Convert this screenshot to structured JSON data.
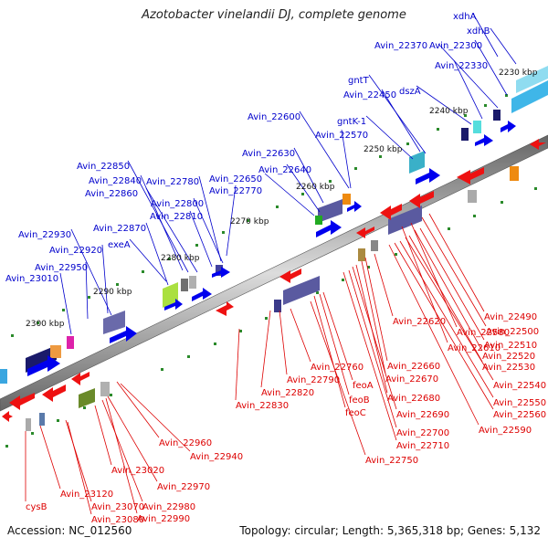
{
  "title": "Azotobacter vinelandii DJ, complete genome",
  "accession": "Accession: NC_012560",
  "topology": "Topology: circular; Length: 5,365,318 bp; Genes: 5,132",
  "colors": {
    "top_strand_label": "#0000cc",
    "bottom_strand_label": "#dd0000",
    "forward_arrow": "#0000ee",
    "reverse_arrow": "#ee1111",
    "tick": "#2a8a2a",
    "axis": "#888888"
  },
  "scale_labels": [
    "2230 kbp",
    "2240 kbp",
    "2250 kbp",
    "2260 kbp",
    "2270 kbp",
    "2280 kbp",
    "2290 kbp",
    "2300 kbp"
  ],
  "top_labels": [
    "xdhA",
    "xdhB",
    "Avin_22370",
    "Avin_22300",
    "Avin_22330",
    "gntT",
    "dszA",
    "Avin_22450",
    "gntK-1",
    "Avin_22600",
    "Avin_22570",
    "Avin_22630",
    "Avin_22640",
    "Avin_22650",
    "Avin_22850",
    "Avin_22780",
    "Avin_22840",
    "Avin_22770",
    "Avin_22860",
    "Avin_22800",
    "Avin_22810",
    "Avin_22870",
    "exeA",
    "Avin_22930",
    "Avin_22920",
    "Avin_22950",
    "Avin_23010"
  ],
  "bottom_labels": [
    "Avin_22490",
    "Avin_22500",
    "Avin_22620",
    "Avin_22580",
    "Avin_22510",
    "Avin_22610",
    "Avin_22520",
    "Avin_22530",
    "Avin_22660",
    "Avin_22760",
    "Avin_22540",
    "Avin_22670",
    "Avin_22790",
    "feoA",
    "Avin_22820",
    "Avin_22550",
    "Avin_22680",
    "feoB",
    "Avin_22560",
    "Avin_22830",
    "feoC",
    "Avin_22690",
    "Avin_22590",
    "Avin_22700",
    "Avin_22710",
    "Avin_22960",
    "Avin_22750",
    "Avin_22940",
    "Avin_23020",
    "Avin_22970",
    "Avin_23120",
    "Avin_23070",
    "Avin_23080",
    "Avin_22980",
    "cysB",
    "Avin_22990"
  ]
}
